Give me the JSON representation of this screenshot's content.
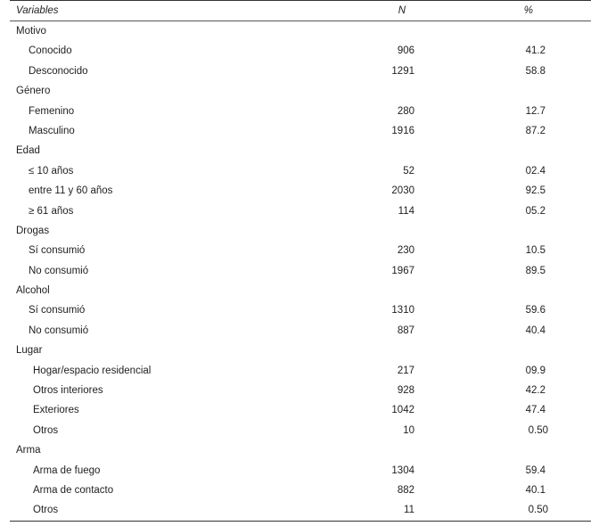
{
  "header": {
    "variables": "Variables",
    "n": "N",
    "pct": "%"
  },
  "groups": [
    {
      "label": "Motivo",
      "rows": [
        {
          "label": "Conocido",
          "n": "906",
          "pct": "41.2"
        },
        {
          "label": "Desconocido",
          "n": "1291",
          "pct": "58.8"
        }
      ]
    },
    {
      "label": "Género",
      "rows": [
        {
          "label": "Femenino",
          "n": "280",
          "pct": "12.7"
        },
        {
          "label": "Masculino",
          "n": "1916",
          "pct": "87.2"
        }
      ]
    },
    {
      "label": "Edad",
      "rows": [
        {
          "label": "≤ 10 años",
          "n": "52",
          "pct": "02.4"
        },
        {
          "label": "entre 11 y 60 años",
          "n": "2030",
          "pct": "92.5"
        },
        {
          "label": "≥ 61 años",
          "n": "114",
          "pct": "05.2"
        }
      ]
    },
    {
      "label": "Drogas",
      "rows": [
        {
          "label": "Sí consumió",
          "n": "230",
          "pct": "10.5"
        },
        {
          "label": "No consumió",
          "n": "1967",
          "pct": "89.5"
        }
      ]
    },
    {
      "label": "Alcohol",
      "rows": [
        {
          "label": "Sí consumió",
          "n": "1310",
          "pct": "59.6"
        },
        {
          "label": "No consumió",
          "n": "887",
          "pct": "40.4"
        }
      ]
    },
    {
      "label": "Lugar",
      "rows": [
        {
          "label": "Hogar/espacio residencial",
          "n": "217",
          "pct": "09.9"
        },
        {
          "label": "Otros interiores",
          "n": "928",
          "pct": "42.2"
        },
        {
          "label": "Exteriores",
          "n": "1042",
          "pct": "47.4"
        },
        {
          "label": "Otros",
          "n": "10",
          "pct": "0.50"
        }
      ]
    },
    {
      "label": "Arma",
      "rows": [
        {
          "label": "Arma de fuego",
          "n": "1304",
          "pct": "59.4"
        },
        {
          "label": "Arma de contacto",
          "n": "882",
          "pct": "40.1"
        },
        {
          "label": "Otros",
          "n": "11",
          "pct": "0.50"
        }
      ]
    }
  ]
}
